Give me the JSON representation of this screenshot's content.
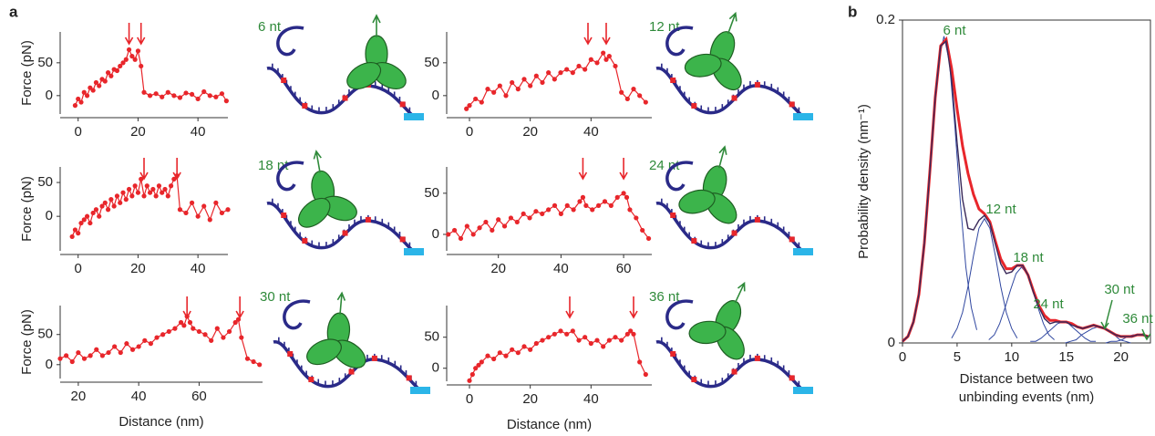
{
  "panel_labels": [
    "a",
    "b"
  ],
  "chart_data": [
    {
      "type": "line",
      "markers": true,
      "ylabel": "Force (pN)",
      "annotation": "6 nt",
      "annotation_color": "#2f8a3a",
      "xlim": [
        -6,
        50
      ],
      "ylim": [
        -28,
        97
      ],
      "xticks": [
        0,
        20,
        40
      ],
      "yticks": [
        0,
        50
      ],
      "event_x": [
        17,
        21
      ],
      "x": [
        -1,
        0,
        1,
        2,
        3,
        4,
        5,
        6,
        7,
        8,
        9,
        10,
        11,
        12,
        13,
        14,
        15,
        16,
        17,
        18,
        19,
        20,
        21,
        22,
        24,
        26,
        28,
        30,
        32,
        34,
        36,
        38,
        40,
        42,
        44,
        46,
        48,
        49.5
      ],
      "series": [
        {
          "color": "#e8262b",
          "values": [
            -15,
            -5,
            -10,
            5,
            0,
            12,
            8,
            20,
            15,
            25,
            22,
            35,
            30,
            40,
            38,
            45,
            50,
            55,
            70,
            60,
            55,
            68,
            45,
            5,
            0,
            3,
            -2,
            5,
            0,
            -3,
            4,
            2,
            -5,
            6,
            0,
            -2,
            3,
            -8
          ]
        }
      ]
    },
    {
      "type": "line",
      "markers": true,
      "annotation": "12 nt",
      "annotation_color": "#2f8a3a",
      "xlim": [
        -7.5,
        60
      ],
      "ylim": [
        -28,
        97
      ],
      "xticks": [
        0,
        20,
        40
      ],
      "yticks": [
        0,
        50
      ],
      "event_x": [
        39,
        45
      ],
      "x": [
        -1,
        0,
        2,
        4,
        6,
        8,
        10,
        12,
        14,
        16,
        18,
        20,
        22,
        24,
        26,
        28,
        30,
        32,
        34,
        36,
        38,
        40,
        42,
        44,
        45,
        46,
        48,
        50,
        52,
        54,
        56,
        58
      ],
      "series": [
        {
          "color": "#e8262b",
          "values": [
            -20,
            -15,
            -5,
            -10,
            10,
            5,
            15,
            0,
            20,
            10,
            25,
            15,
            30,
            20,
            35,
            25,
            35,
            40,
            35,
            45,
            40,
            55,
            50,
            65,
            55,
            60,
            45,
            5,
            -5,
            10,
            0,
            -10
          ]
        }
      ]
    },
    {
      "type": "line",
      "markers": true,
      "ylabel": "Force (pN)",
      "annotation": "18 nt",
      "annotation_color": "#2f8a3a",
      "xlim": [
        -6,
        50
      ],
      "ylim": [
        -51,
        73
      ],
      "xticks": [
        0,
        20,
        40
      ],
      "yticks": [
        0,
        50
      ],
      "event_x": [
        22,
        33
      ],
      "x": [
        -2,
        -1,
        0,
        1,
        2,
        3,
        4,
        5,
        6,
        7,
        8,
        9,
        10,
        11,
        12,
        13,
        14,
        15,
        16,
        17,
        18,
        19,
        20,
        21,
        22,
        23,
        24,
        25,
        26,
        27,
        28,
        29,
        30,
        31,
        32,
        33,
        34,
        36,
        38,
        40,
        42,
        44,
        46,
        48,
        50
      ],
      "series": [
        {
          "color": "#e8262b",
          "values": [
            -30,
            -20,
            -25,
            -10,
            -5,
            0,
            -10,
            5,
            10,
            0,
            15,
            20,
            10,
            25,
            15,
            30,
            20,
            35,
            25,
            40,
            30,
            45,
            35,
            55,
            30,
            45,
            35,
            40,
            30,
            45,
            35,
            40,
            30,
            45,
            55,
            60,
            10,
            5,
            20,
            0,
            15,
            -5,
            20,
            5,
            10
          ]
        }
      ]
    },
    {
      "type": "line",
      "markers": true,
      "annotation": "24 nt",
      "annotation_color": "#2f8a3a",
      "xlim": [
        3.5,
        69
      ],
      "ylim": [
        -20,
        82
      ],
      "xticks": [
        20,
        40,
        60
      ],
      "yticks": [
        0,
        50
      ],
      "event_x": [
        47,
        60
      ],
      "x": [
        4,
        6,
        8,
        10,
        12,
        14,
        16,
        18,
        20,
        22,
        24,
        26,
        28,
        30,
        32,
        34,
        36,
        38,
        40,
        42,
        44,
        46,
        47,
        48,
        50,
        52,
        54,
        56,
        58,
        60,
        61,
        62,
        64,
        66,
        68
      ],
      "series": [
        {
          "color": "#e8262b",
          "values": [
            0,
            5,
            -5,
            10,
            0,
            8,
            15,
            5,
            18,
            10,
            20,
            15,
            25,
            20,
            28,
            25,
            30,
            35,
            25,
            35,
            30,
            40,
            45,
            35,
            30,
            35,
            40,
            35,
            45,
            50,
            45,
            30,
            20,
            5,
            -5
          ]
        }
      ]
    },
    {
      "type": "line",
      "markers": true,
      "ylabel": "Force (pN)",
      "xlabel": "Distance (nm)",
      "annotation": "30 nt",
      "annotation_color": "#2f8a3a",
      "xlim": [
        14,
        81
      ],
      "ylim": [
        -23,
        98
      ],
      "xticks": [
        20,
        40,
        60
      ],
      "yticks": [
        0,
        50
      ],
      "event_x": [
        56,
        73.5
      ],
      "x": [
        14,
        16,
        18,
        20,
        22,
        24,
        26,
        28,
        30,
        32,
        34,
        36,
        38,
        40,
        42,
        44,
        46,
        48,
        50,
        52,
        54,
        55,
        56,
        57,
        58,
        60,
        62,
        64,
        66,
        68,
        70,
        72,
        73,
        74,
        76,
        78,
        80
      ],
      "series": [
        {
          "color": "#e8262b",
          "values": [
            10,
            15,
            5,
            20,
            10,
            15,
            25,
            15,
            20,
            30,
            20,
            35,
            25,
            30,
            40,
            35,
            45,
            50,
            55,
            60,
            70,
            65,
            80,
            70,
            60,
            55,
            50,
            40,
            60,
            45,
            55,
            70,
            75,
            45,
            10,
            5,
            0
          ]
        }
      ]
    },
    {
      "type": "line",
      "markers": true,
      "xlabel": "Distance (nm)",
      "annotation": "36 nt",
      "annotation_color": "#2f8a3a",
      "xlim": [
        -7.5,
        60
      ],
      "ylim": [
        -21,
        101
      ],
      "xticks": [
        0,
        20,
        40
      ],
      "yticks": [
        0,
        50
      ],
      "event_x": [
        33,
        54
      ],
      "x": [
        0,
        1,
        2,
        3,
        4,
        6,
        8,
        10,
        12,
        14,
        16,
        18,
        20,
        22,
        24,
        26,
        28,
        30,
        32,
        34,
        36,
        38,
        40,
        42,
        44,
        46,
        48,
        50,
        52,
        53,
        54,
        56,
        58
      ],
      "series": [
        {
          "color": "#e8262b",
          "values": [
            -20,
            -10,
            0,
            5,
            10,
            20,
            15,
            25,
            20,
            30,
            25,
            35,
            30,
            40,
            45,
            50,
            55,
            60,
            55,
            60,
            45,
            50,
            40,
            45,
            35,
            45,
            50,
            45,
            55,
            60,
            55,
            10,
            -10
          ]
        }
      ]
    },
    {
      "type": "line",
      "ylabel": "Probability density (nm⁻¹)",
      "xlabel": [
        "Distance between two",
        "unbinding events (nm)"
      ],
      "annotations": [
        "6 nt",
        "12 nt",
        "18 nt",
        "24 nt",
        "30 nt",
        "36 nt"
      ],
      "annotation_color": "#2f8a3a",
      "xlim": [
        0,
        22.7
      ],
      "ylim": [
        0,
        0.2
      ],
      "xticks": [
        0,
        5,
        10,
        15,
        20
      ],
      "yticks": [
        0,
        0.2
      ],
      "x": [
        0,
        0.5,
        1,
        1.5,
        2,
        2.5,
        3,
        3.5,
        4,
        4.5,
        5,
        5.5,
        6,
        6.5,
        7,
        7.5,
        8,
        8.5,
        9,
        9.5,
        10,
        10.5,
        11,
        11.5,
        12,
        12.5,
        13,
        13.5,
        14,
        14.5,
        15,
        15.5,
        16,
        16.5,
        17,
        17.5,
        18,
        18.5,
        19,
        19.5,
        20,
        20.5,
        21,
        21.5,
        22,
        22.5
      ],
      "components": {
        "color": "#3047a0",
        "curves": [
          {
            "x": [
              0.8,
              1.3,
              1.8,
              2.3,
              2.8,
              3.3,
              3.8,
              4.3,
              4.8,
              5.3,
              5.8,
              6.3,
              6.8
            ],
            "values": [
              0.008,
              0.022,
              0.047,
              0.087,
              0.134,
              0.174,
              0.19,
              0.174,
              0.134,
              0.087,
              0.047,
              0.022,
              0.008
            ]
          },
          {
            "x": [
              4.5,
              5,
              5.5,
              6,
              6.5,
              7,
              7.5,
              8,
              8.5,
              9,
              9.5,
              10,
              10.5
            ],
            "values": [
              0.003,
              0.009,
              0.019,
              0.035,
              0.054,
              0.071,
              0.077,
              0.071,
              0.054,
              0.035,
              0.019,
              0.009,
              0.003
            ]
          },
          {
            "x": [
              7.9,
              8.4,
              8.9,
              9.4,
              9.9,
              10.4,
              10.9,
              11.4,
              11.9,
              12.4,
              12.9,
              13.4,
              13.9
            ],
            "values": [
              0.002,
              0.005,
              0.012,
              0.022,
              0.033,
              0.043,
              0.047,
              0.043,
              0.033,
              0.022,
              0.012,
              0.005,
              0.002
            ]
          },
          {
            "x": [
              11.7,
              12.2,
              12.7,
              13.2,
              13.7,
              14.2,
              14.7,
              15.2,
              15.7,
              16.2,
              16.7,
              17.2,
              17.7
            ],
            "values": [
              0.001,
              0.001,
              0.003,
              0.006,
              0.009,
              0.012,
              0.013,
              0.012,
              0.009,
              0.006,
              0.003,
              0.001,
              0.001
            ]
          },
          {
            "x": [
              14.9,
              15.4,
              15.9,
              16.4,
              16.9,
              17.4,
              17.9,
              18.4,
              18.9,
              19.4,
              19.9,
              20.4,
              20.9
            ],
            "values": [
              0,
              0.001,
              0.002,
              0.005,
              0.007,
              0.009,
              0.01,
              0.009,
              0.007,
              0.005,
              0.002,
              0.001,
              0
            ]
          },
          {
            "x": [
              18.6,
              19.1,
              19.6,
              20.1,
              20.6,
              21.1,
              21.6,
              22.1,
              22.6
            ],
            "values": [
              0,
              0.001,
              0.001,
              0.002,
              0.004,
              0.005,
              0.005,
              0.005,
              0.004
            ]
          }
        ]
      },
      "series": [
        {
          "color": "#e8262b",
          "values": [
            0.001,
            0.004,
            0.013,
            0.03,
            0.062,
            0.106,
            0.152,
            0.184,
            0.188,
            0.17,
            0.145,
            0.122,
            0.105,
            0.092,
            0.083,
            0.08,
            0.075,
            0.063,
            0.052,
            0.046,
            0.046,
            0.048,
            0.048,
            0.042,
            0.032,
            0.023,
            0.017,
            0.014,
            0.014,
            0.013,
            0.013,
            0.012,
            0.01,
            0.009,
            0.01,
            0.011,
            0.01,
            0.009,
            0.007,
            0.005,
            0.004,
            0.004,
            0.004,
            0.005,
            0.005,
            0.004
          ]
        },
        {
          "color": "#3a2a5a",
          "values": [
            0.001,
            0.004,
            0.013,
            0.03,
            0.062,
            0.106,
            0.152,
            0.184,
            0.187,
            0.163,
            0.124,
            0.089,
            0.071,
            0.07,
            0.076,
            0.079,
            0.074,
            0.061,
            0.049,
            0.043,
            0.044,
            0.048,
            0.048,
            0.042,
            0.031,
            0.022,
            0.015,
            0.012,
            0.013,
            0.013,
            0.013,
            0.011,
            0.01,
            0.009,
            0.01,
            0.011,
            0.01,
            0.009,
            0.007,
            0.005,
            0.004,
            0.004,
            0.004,
            0.005,
            0.005,
            0.004
          ]
        }
      ]
    }
  ]
}
